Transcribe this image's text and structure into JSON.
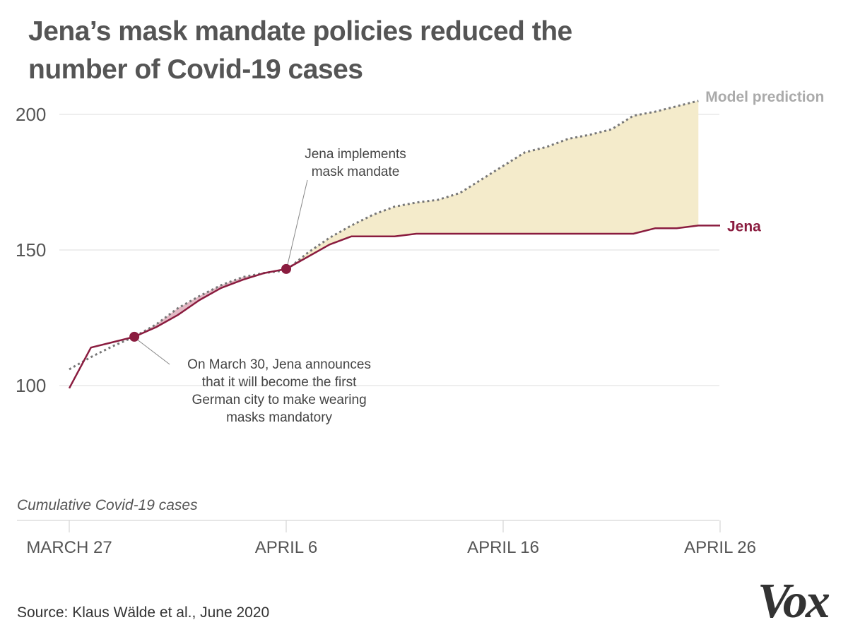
{
  "title": "Jena’s mask mandate policies reduced the number of Covid-19 cases",
  "source": "Source: Klaus Wälde et al., June 2020",
  "logo": "Vox",
  "colors": {
    "jena": "#8a1c3f",
    "model": "#777777",
    "gap_fill": "#f4ebcb",
    "gap_fill_early": "#e3b9c4",
    "grid": "#dddddd",
    "text": "#555555"
  },
  "chart_data": {
    "type": "line",
    "title": "Jena’s mask mandate policies reduced the number of Covid-19 cases",
    "ylabel": "Cumulative Covid-19 cases",
    "ylim": [
      55,
      210
    ],
    "yticks": [
      100,
      150,
      200
    ],
    "xlim": [
      "March 27",
      "April 26"
    ],
    "xticks": [
      {
        "date": "March 27",
        "label": "MARCH 27"
      },
      {
        "date": "April 6",
        "label": "APRIL 6"
      },
      {
        "date": "April 16",
        "label": "APRIL 16"
      },
      {
        "date": "April 26",
        "label": "APRIL 26"
      }
    ],
    "grid": true,
    "series": [
      {
        "name": "Jena",
        "style": "solid",
        "points": [
          [
            "March 27",
            99
          ],
          [
            "March 28",
            114
          ],
          [
            "March 29",
            116
          ],
          [
            "March 30",
            118
          ],
          [
            "March 31",
            121.5
          ],
          [
            "April 1",
            126
          ],
          [
            "April 2",
            131.5
          ],
          [
            "April 3",
            136
          ],
          [
            "April 4",
            139
          ],
          [
            "April 5",
            141.5
          ],
          [
            "April 6",
            143
          ],
          [
            "April 7",
            147.5
          ],
          [
            "April 8",
            152
          ],
          [
            "April 9",
            155
          ],
          [
            "April 10",
            155
          ],
          [
            "April 11",
            155
          ],
          [
            "April 12",
            156
          ],
          [
            "April 13",
            156
          ],
          [
            "April 14",
            156
          ],
          [
            "April 15",
            156
          ],
          [
            "April 16",
            156
          ],
          [
            "April 17",
            156
          ],
          [
            "April 18",
            156
          ],
          [
            "April 19",
            156
          ],
          [
            "April 20",
            156
          ],
          [
            "April 21",
            156
          ],
          [
            "April 22",
            156
          ],
          [
            "April 23",
            158
          ],
          [
            "April 24",
            158
          ],
          [
            "April 25",
            159
          ],
          [
            "April 26",
            159
          ]
        ]
      },
      {
        "name": "Model prediction",
        "style": "dotted",
        "points": [
          [
            "March 27",
            106
          ],
          [
            "March 28",
            110.5
          ],
          [
            "March 29",
            114.5
          ],
          [
            "March 30",
            118
          ],
          [
            "March 31",
            122.5
          ],
          [
            "April 1",
            128.5
          ],
          [
            "April 2",
            133
          ],
          [
            "April 3",
            137
          ],
          [
            "April 4",
            140
          ],
          [
            "April 5",
            141.5
          ],
          [
            "April 6",
            142.5
          ],
          [
            "April 7",
            149
          ],
          [
            "April 8",
            154.5
          ],
          [
            "April 9",
            159
          ],
          [
            "April 10",
            163
          ],
          [
            "April 11",
            166
          ],
          [
            "April 12",
            167.5
          ],
          [
            "April 13",
            168.5
          ],
          [
            "April 14",
            171
          ],
          [
            "April 15",
            176
          ],
          [
            "April 16",
            181
          ],
          [
            "April 17",
            186
          ],
          [
            "April 18",
            188
          ],
          [
            "April 19",
            191
          ],
          [
            "April 20",
            192.5
          ],
          [
            "April 21",
            194.5
          ],
          [
            "April 22",
            199.5
          ],
          [
            "April 23",
            201
          ],
          [
            "April 24",
            203
          ],
          [
            "April 25",
            205
          ]
        ]
      }
    ],
    "markers": [
      {
        "date": "March 30",
        "value": 118,
        "series": "Jena"
      },
      {
        "date": "April 6",
        "value": 143,
        "series": "Jena"
      }
    ],
    "annotations": [
      {
        "text": [
          "Jena implements",
          "mask mandate"
        ],
        "date": "April 6"
      },
      {
        "text": [
          "On March 30, Jena announces",
          "that it will become the first",
          "German city to make wearing",
          "masks mandatory"
        ],
        "date": "March 30"
      }
    ]
  }
}
